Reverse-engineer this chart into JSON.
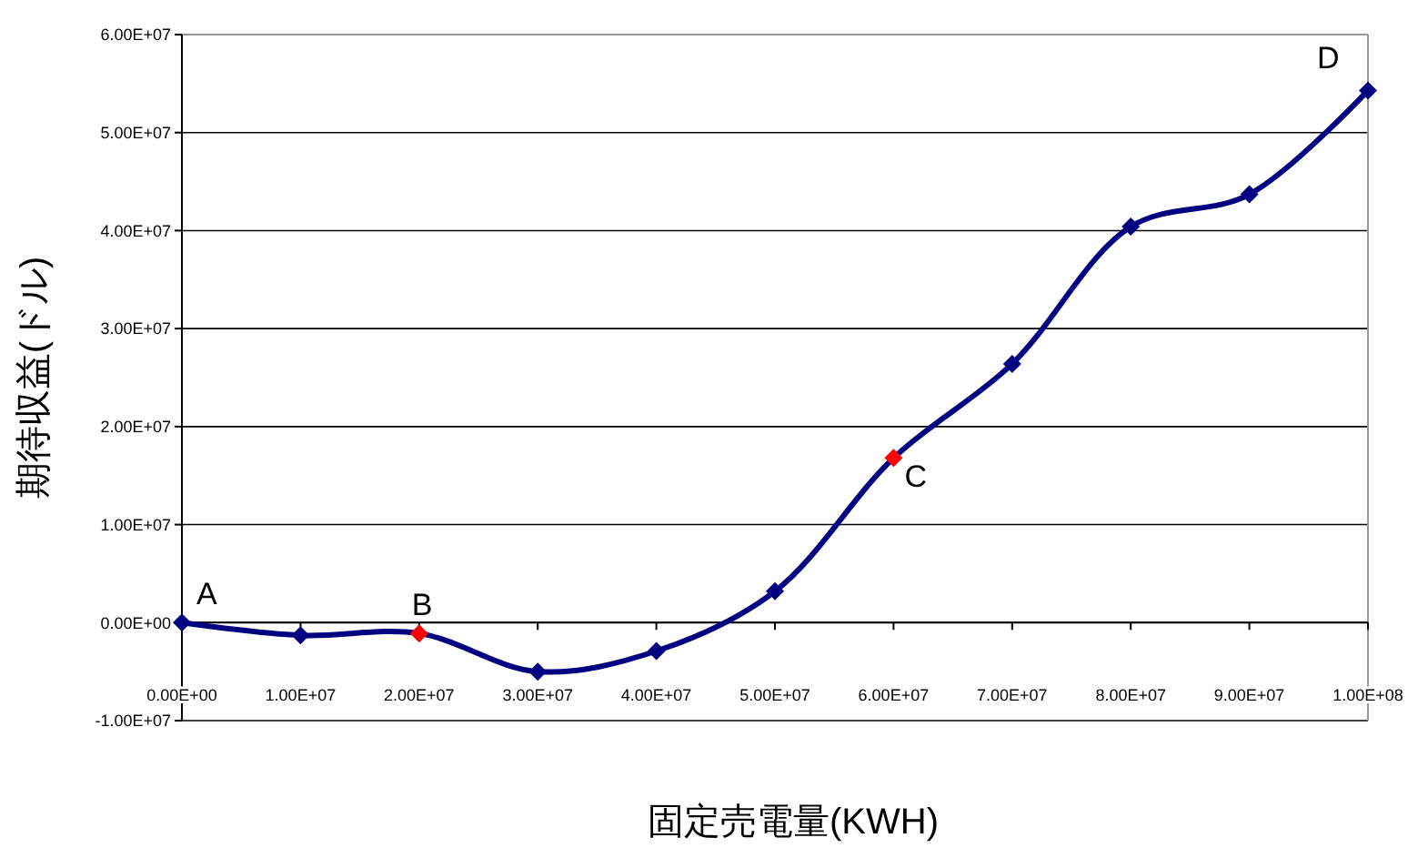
{
  "chart_data": {
    "type": "line",
    "xlabel": "固定売電量(KWH)",
    "ylabel": "期待収益(ドル)",
    "x": [
      0,
      10000000,
      20000000,
      30000000,
      40000000,
      50000000,
      60000000,
      70000000,
      80000000,
      90000000,
      100000000
    ],
    "series": [
      {
        "color": "#000080",
        "colors": [
          "#000080",
          "#000080",
          "#ff0000",
          "#000080",
          "#000080",
          "#000080",
          "#ff0000",
          "#000080",
          "#000080",
          "#000080",
          "#000080"
        ],
        "values": [
          0,
          -1300000,
          -1100000,
          -5000000,
          -2900000,
          3200000,
          16800000,
          26400000,
          40400000,
          43700000,
          54300000
        ]
      }
    ],
    "xlim": [
      0,
      100000000
    ],
    "xticks": [
      {
        "value": 0,
        "label": "0.00E+00"
      },
      {
        "value": 10000000,
        "label": "1.00E+07"
      },
      {
        "value": 20000000,
        "label": "2.00E+07"
      },
      {
        "value": 30000000,
        "label": "3.00E+07"
      },
      {
        "value": 40000000,
        "label": "4.00E+07"
      },
      {
        "value": 50000000,
        "label": "5.00E+07"
      },
      {
        "value": 60000000,
        "label": "6.00E+07"
      },
      {
        "value": 70000000,
        "label": "7.00E+07"
      },
      {
        "value": 80000000,
        "label": "8.00E+07"
      },
      {
        "value": 90000000,
        "label": "9.00E+07"
      },
      {
        "value": 100000000,
        "label": "1.00E+08"
      }
    ],
    "ylim": [
      -10000000,
      60000000
    ],
    "yticks": [
      {
        "value": -10000000,
        "label": "-1.00E+07"
      },
      {
        "value": 0,
        "label": "0.00E+00"
      },
      {
        "value": 10000000,
        "label": "1.00E+07"
      },
      {
        "value": 20000000,
        "label": "2.00E+07"
      },
      {
        "value": 30000000,
        "label": "3.00E+07"
      },
      {
        "value": 40000000,
        "label": "4.00E+07"
      },
      {
        "value": 50000000,
        "label": "5.00E+07"
      },
      {
        "value": 60000000,
        "label": "6.00E+07"
      }
    ],
    "grid": "y",
    "marker": "diamond",
    "line_style": "solid",
    "annotations": [
      {
        "text": "A",
        "x": 0,
        "y": 0
      },
      {
        "text": "B",
        "x": 20000000,
        "y": -1100000
      },
      {
        "text": "C",
        "x": 60000000,
        "y": 16800000
      },
      {
        "text": "D",
        "x": 100000000,
        "y": 54300000
      }
    ]
  }
}
